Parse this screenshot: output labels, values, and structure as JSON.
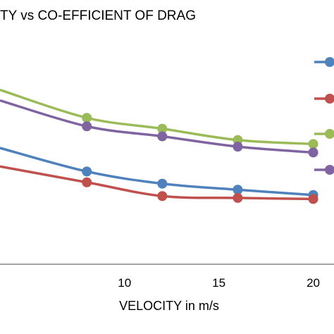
{
  "chart_data": {
    "type": "line",
    "title": "TY vs CO-EFFICIENT OF DRAG",
    "xlabel": "VELOCITY in m/s",
    "ylabel": "",
    "xlim": [
      3.4,
      21.1
    ],
    "ylim": [
      0,
      1
    ],
    "x_ticks": [
      10,
      15,
      20
    ],
    "grid": false,
    "legend": "right",
    "series": [
      {
        "color": "#4F81BD",
        "x": [
          3.4,
          8,
          12,
          16,
          20
        ],
        "y": [
          0.44,
          0.351,
          0.305,
          0.282,
          0.262
        ]
      },
      {
        "color": "#C0504D",
        "x": [
          3.4,
          8,
          12,
          16,
          20
        ],
        "y": [
          0.37,
          0.31,
          0.258,
          0.251,
          0.247
        ]
      },
      {
        "color": "#9BBB59",
        "x": [
          3.4,
          8,
          12,
          16,
          20
        ],
        "y": [
          0.66,
          0.554,
          0.513,
          0.47,
          0.455
        ]
      },
      {
        "color": "#8064A2",
        "x": [
          3.4,
          8,
          12,
          16,
          20
        ],
        "y": [
          0.62,
          0.522,
          0.484,
          0.445,
          0.423
        ]
      }
    ]
  }
}
